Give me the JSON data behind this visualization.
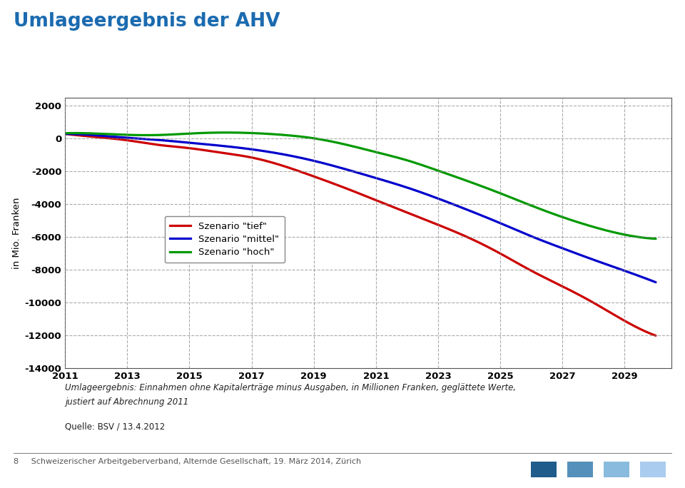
{
  "title": "Umlageergebnis der AHV",
  "title_color": "#1B6BB0",
  "ylabel": "in Mio. Franken",
  "xlim": [
    2011,
    2030.5
  ],
  "ylim": [
    -14000,
    2500
  ],
  "yticks": [
    2000,
    0,
    -2000,
    -4000,
    -6000,
    -8000,
    -10000,
    -12000,
    -14000
  ],
  "xticks": [
    2011,
    2013,
    2015,
    2017,
    2019,
    2021,
    2023,
    2025,
    2027,
    2029
  ],
  "background_color": "#ffffff",
  "grid_color": "#888888",
  "footnote_line1": "Umlageergebnis: Einnahmen ohne Kapitalerträge minus Ausgaben, in Millionen Franken, geglättete Werte,",
  "footnote_line2": "justiert auf Abrechnung 2011",
  "source": "Quelle: BSV / 13.4.2012",
  "footer": "8     Schweizerischer Arbeitgeberverband, Alternde Gesellschaft, 19. März 2014, Zürich",
  "legend_labels": [
    "Szenario \"tief\"",
    "Szenario \"mittel\"",
    "Szenario \"hoch\""
  ],
  "legend_colors": [
    "#cc0000",
    "#0000cc",
    "#009900"
  ],
  "series_tief": {
    "years": [
      2011,
      2012,
      2013,
      2014,
      2015,
      2016,
      2017,
      2018,
      2019,
      2020,
      2021,
      2022,
      2023,
      2024,
      2025,
      2026,
      2027,
      2028,
      2029,
      2030
    ],
    "values": [
      290,
      100,
      -100,
      -380,
      -580,
      -850,
      -1150,
      -1650,
      -2300,
      -3000,
      -3750,
      -4500,
      -5250,
      -6050,
      -7000,
      -8050,
      -9000,
      -10000,
      -11100,
      -12000
    ]
  },
  "series_mittel": {
    "years": [
      2011,
      2012,
      2013,
      2014,
      2015,
      2016,
      2017,
      2018,
      2019,
      2020,
      2021,
      2022,
      2023,
      2024,
      2025,
      2026,
      2027,
      2028,
      2029,
      2030
    ],
    "values": [
      290,
      200,
      50,
      -80,
      -250,
      -430,
      -650,
      -950,
      -1350,
      -1850,
      -2400,
      -2980,
      -3650,
      -4380,
      -5150,
      -5950,
      -6680,
      -7380,
      -8050,
      -8750
    ]
  },
  "series_hoch": {
    "years": [
      2011,
      2012,
      2013,
      2014,
      2015,
      2016,
      2017,
      2018,
      2019,
      2020,
      2021,
      2022,
      2023,
      2024,
      2025,
      2026,
      2027,
      2028,
      2029,
      2030
    ],
    "values": [
      330,
      310,
      230,
      220,
      310,
      370,
      340,
      230,
      20,
      -350,
      -820,
      -1320,
      -1950,
      -2620,
      -3330,
      -4080,
      -4780,
      -5380,
      -5850,
      -6100
    ]
  },
  "colors_footer": [
    "#1F5C8B",
    "#5590BB",
    "#88BBDD",
    "#AACCEE"
  ]
}
